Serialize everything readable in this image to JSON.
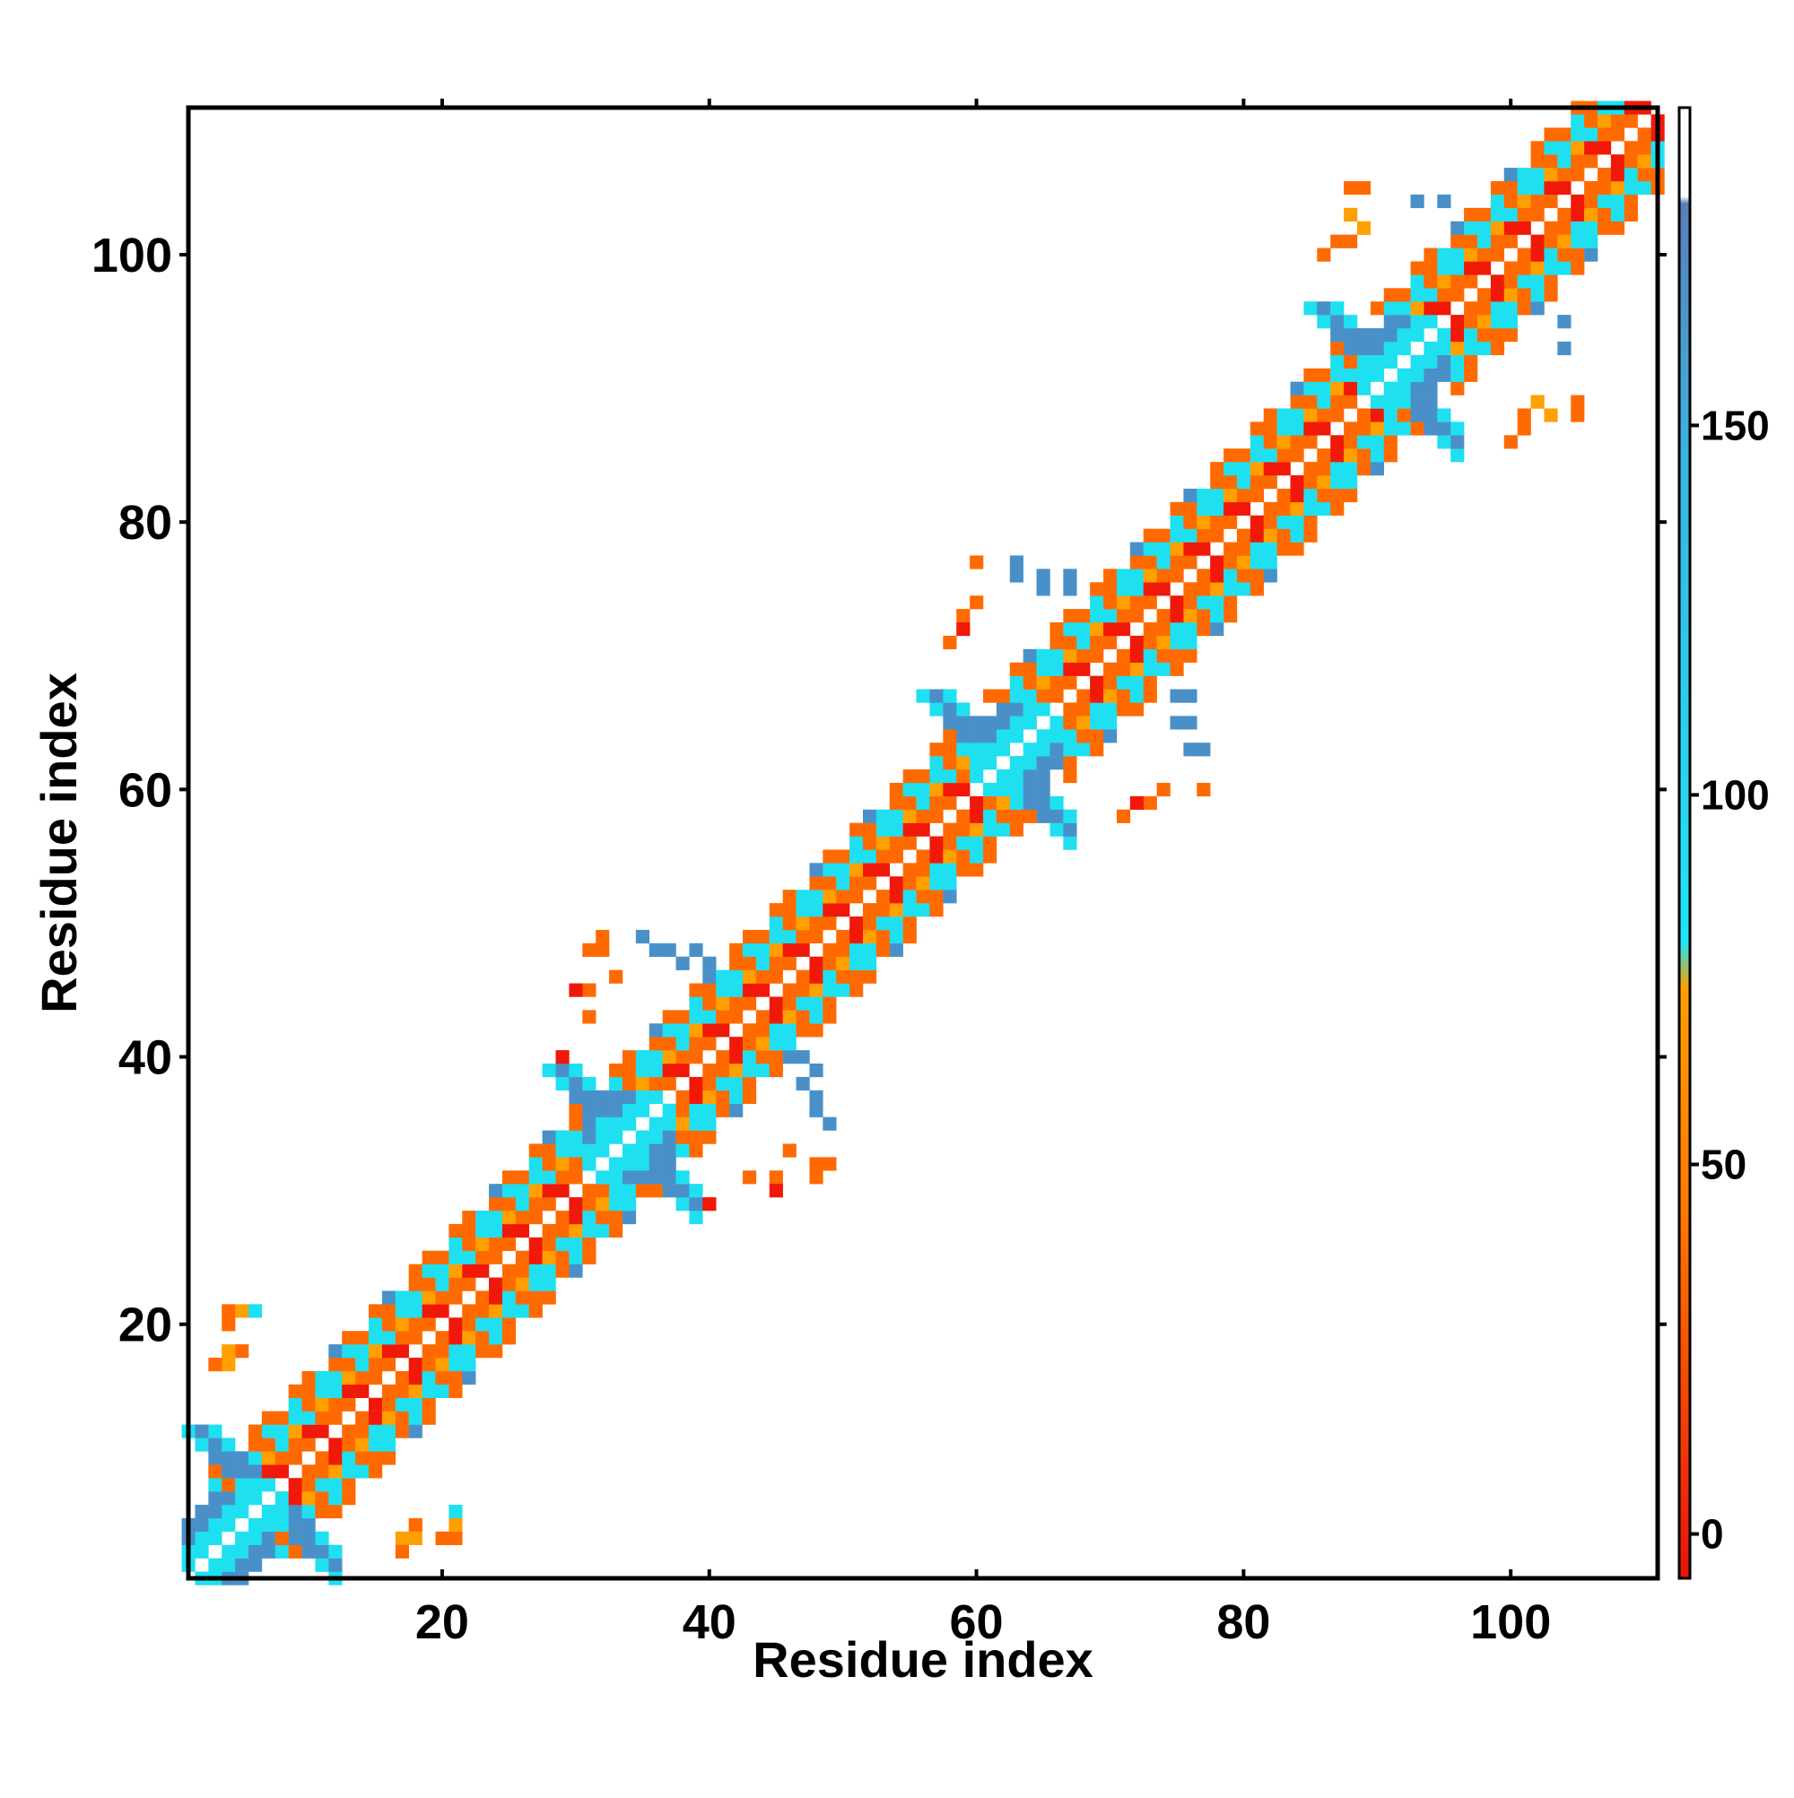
{
  "chart_data": {
    "type": "heatmap",
    "title": "",
    "xlabel": "Residue index",
    "ylabel": "Residue index",
    "xlim": [
      1,
      111
    ],
    "ylim": [
      1,
      111
    ],
    "x_ticks": [
      20,
      40,
      60,
      80,
      100
    ],
    "y_ticks": [
      20,
      40,
      60,
      80,
      100
    ],
    "symmetric": true,
    "grid": false,
    "colorbar": {
      "position": "right",
      "ticks": [
        0,
        50,
        100,
        150
      ],
      "range": [
        -6,
        193
      ],
      "stops": [
        {
          "value": -6,
          "color": "#e8140c"
        },
        {
          "value": 45,
          "color": "#ff7a00"
        },
        {
          "value": 74,
          "color": "#ff9f00"
        },
        {
          "value": 80,
          "color": "#1fe6f5"
        },
        {
          "value": 145,
          "color": "#3ab4e0"
        },
        {
          "value": 180,
          "color": "#5a7fb8"
        },
        {
          "value": 181,
          "color": "#ffffff"
        },
        {
          "value": 193,
          "color": "#ffffff"
        }
      ]
    },
    "category_colors": {
      "red": "#f01808",
      "orange": "#ff6a00",
      "amber": "#ffa000",
      "cyan": "#1ee0f0",
      "steel": "#4a90c8"
    },
    "diagonal_segments": [
      {
        "start": 1,
        "end": 7,
        "type": "helix"
      },
      {
        "start": 8,
        "end": 30,
        "type": "strand"
      },
      {
        "start": 31,
        "end": 37,
        "type": "helix"
      },
      {
        "start": 38,
        "end": 59,
        "type": "strand"
      },
      {
        "start": 60,
        "end": 66,
        "type": "helix"
      },
      {
        "start": 67,
        "end": 88,
        "type": "strand"
      },
      {
        "start": 89,
        "end": 95,
        "type": "helix"
      },
      {
        "start": 96,
        "end": 111,
        "type": "strand"
      }
    ],
    "turn_centers": [
      7,
      34,
      62,
      91
    ],
    "turn_spread": 5,
    "offdiag_pixels": [
      {
        "x": 4,
        "y": 21,
        "c": "orange"
      },
      {
        "x": 5,
        "y": 21,
        "c": "amber"
      },
      {
        "x": 6,
        "y": 21,
        "c": "cyan"
      },
      {
        "x": 4,
        "y": 17,
        "c": "amber"
      },
      {
        "x": 5,
        "y": 18,
        "c": "orange"
      },
      {
        "x": 17,
        "y": 3,
        "c": "orange"
      },
      {
        "x": 18,
        "y": 4,
        "c": "amber"
      },
      {
        "x": 20,
        "y": 4,
        "c": "orange"
      },
      {
        "x": 21,
        "y": 6,
        "c": "cyan"
      },
      {
        "x": 31,
        "y": 48,
        "c": "orange"
      },
      {
        "x": 31,
        "y": 45,
        "c": "orange"
      },
      {
        "x": 30,
        "y": 45,
        "c": "red"
      },
      {
        "x": 35,
        "y": 49,
        "c": "steel"
      },
      {
        "x": 37,
        "y": 48,
        "c": "steel"
      },
      {
        "x": 39,
        "y": 48,
        "c": "steel"
      },
      {
        "x": 46,
        "y": 33,
        "c": "orange"
      },
      {
        "x": 48,
        "y": 32,
        "c": "orange"
      },
      {
        "x": 49,
        "y": 32,
        "c": "orange"
      },
      {
        "x": 47,
        "y": 40,
        "c": "steel"
      },
      {
        "x": 47,
        "y": 38,
        "c": "steel"
      },
      {
        "x": 48,
        "y": 36,
        "c": "steel"
      },
      {
        "x": 43,
        "y": 31,
        "c": "orange"
      },
      {
        "x": 40,
        "y": 29,
        "c": "red"
      },
      {
        "x": 60,
        "y": 77,
        "c": "orange"
      },
      {
        "x": 59,
        "y": 73,
        "c": "orange"
      },
      {
        "x": 58,
        "y": 71,
        "c": "orange"
      },
      {
        "x": 63,
        "y": 77,
        "c": "steel"
      },
      {
        "x": 65,
        "y": 76,
        "c": "steel"
      },
      {
        "x": 67,
        "y": 76,
        "c": "steel"
      },
      {
        "x": 75,
        "y": 67,
        "c": "steel"
      },
      {
        "x": 75,
        "y": 65,
        "c": "steel"
      },
      {
        "x": 76,
        "y": 63,
        "c": "steel"
      },
      {
        "x": 74,
        "y": 60,
        "c": "orange"
      },
      {
        "x": 77,
        "y": 60,
        "c": "orange"
      },
      {
        "x": 72,
        "y": 59,
        "c": "red"
      },
      {
        "x": 89,
        "y": 105,
        "c": "orange"
      },
      {
        "x": 89,
        "y": 102,
        "c": "amber"
      },
      {
        "x": 87,
        "y": 101,
        "c": "orange"
      },
      {
        "x": 93,
        "y": 104,
        "c": "steel"
      },
      {
        "x": 95,
        "y": 104,
        "c": "steel"
      },
      {
        "x": 104,
        "y": 95,
        "c": "steel"
      },
      {
        "x": 104,
        "y": 93,
        "c": "steel"
      },
      {
        "x": 101,
        "y": 88,
        "c": "orange"
      },
      {
        "x": 103,
        "y": 88,
        "c": "amber"
      },
      {
        "x": 105,
        "y": 88,
        "c": "orange"
      },
      {
        "x": 100,
        "y": 86,
        "c": "orange"
      }
    ]
  }
}
